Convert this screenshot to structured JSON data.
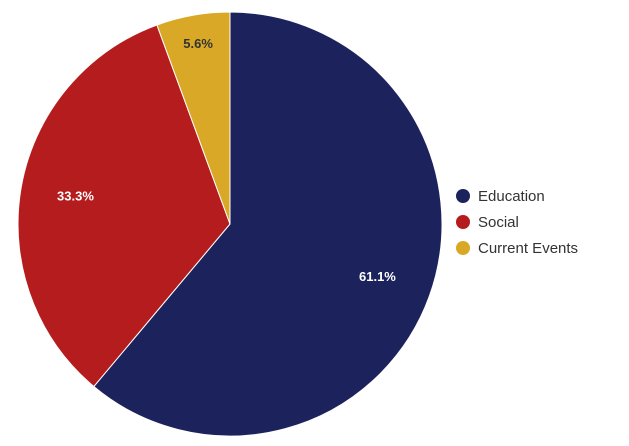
{
  "chart_data": {
    "type": "pie",
    "title": "",
    "categories": [
      "Education",
      "Social",
      "Current Events"
    ],
    "values": [
      61.1,
      33.3,
      5.6
    ],
    "labels": [
      "61.1%",
      "33.3%",
      "5.6%"
    ],
    "colors": [
      "#1c235c",
      "#b51c1d",
      "#d8a826"
    ],
    "label_colors": [
      "#ffffff",
      "#ffffff",
      "#333333"
    ],
    "legend": {
      "position": "right",
      "entries": [
        "Education",
        "Social",
        "Current Events"
      ]
    }
  }
}
